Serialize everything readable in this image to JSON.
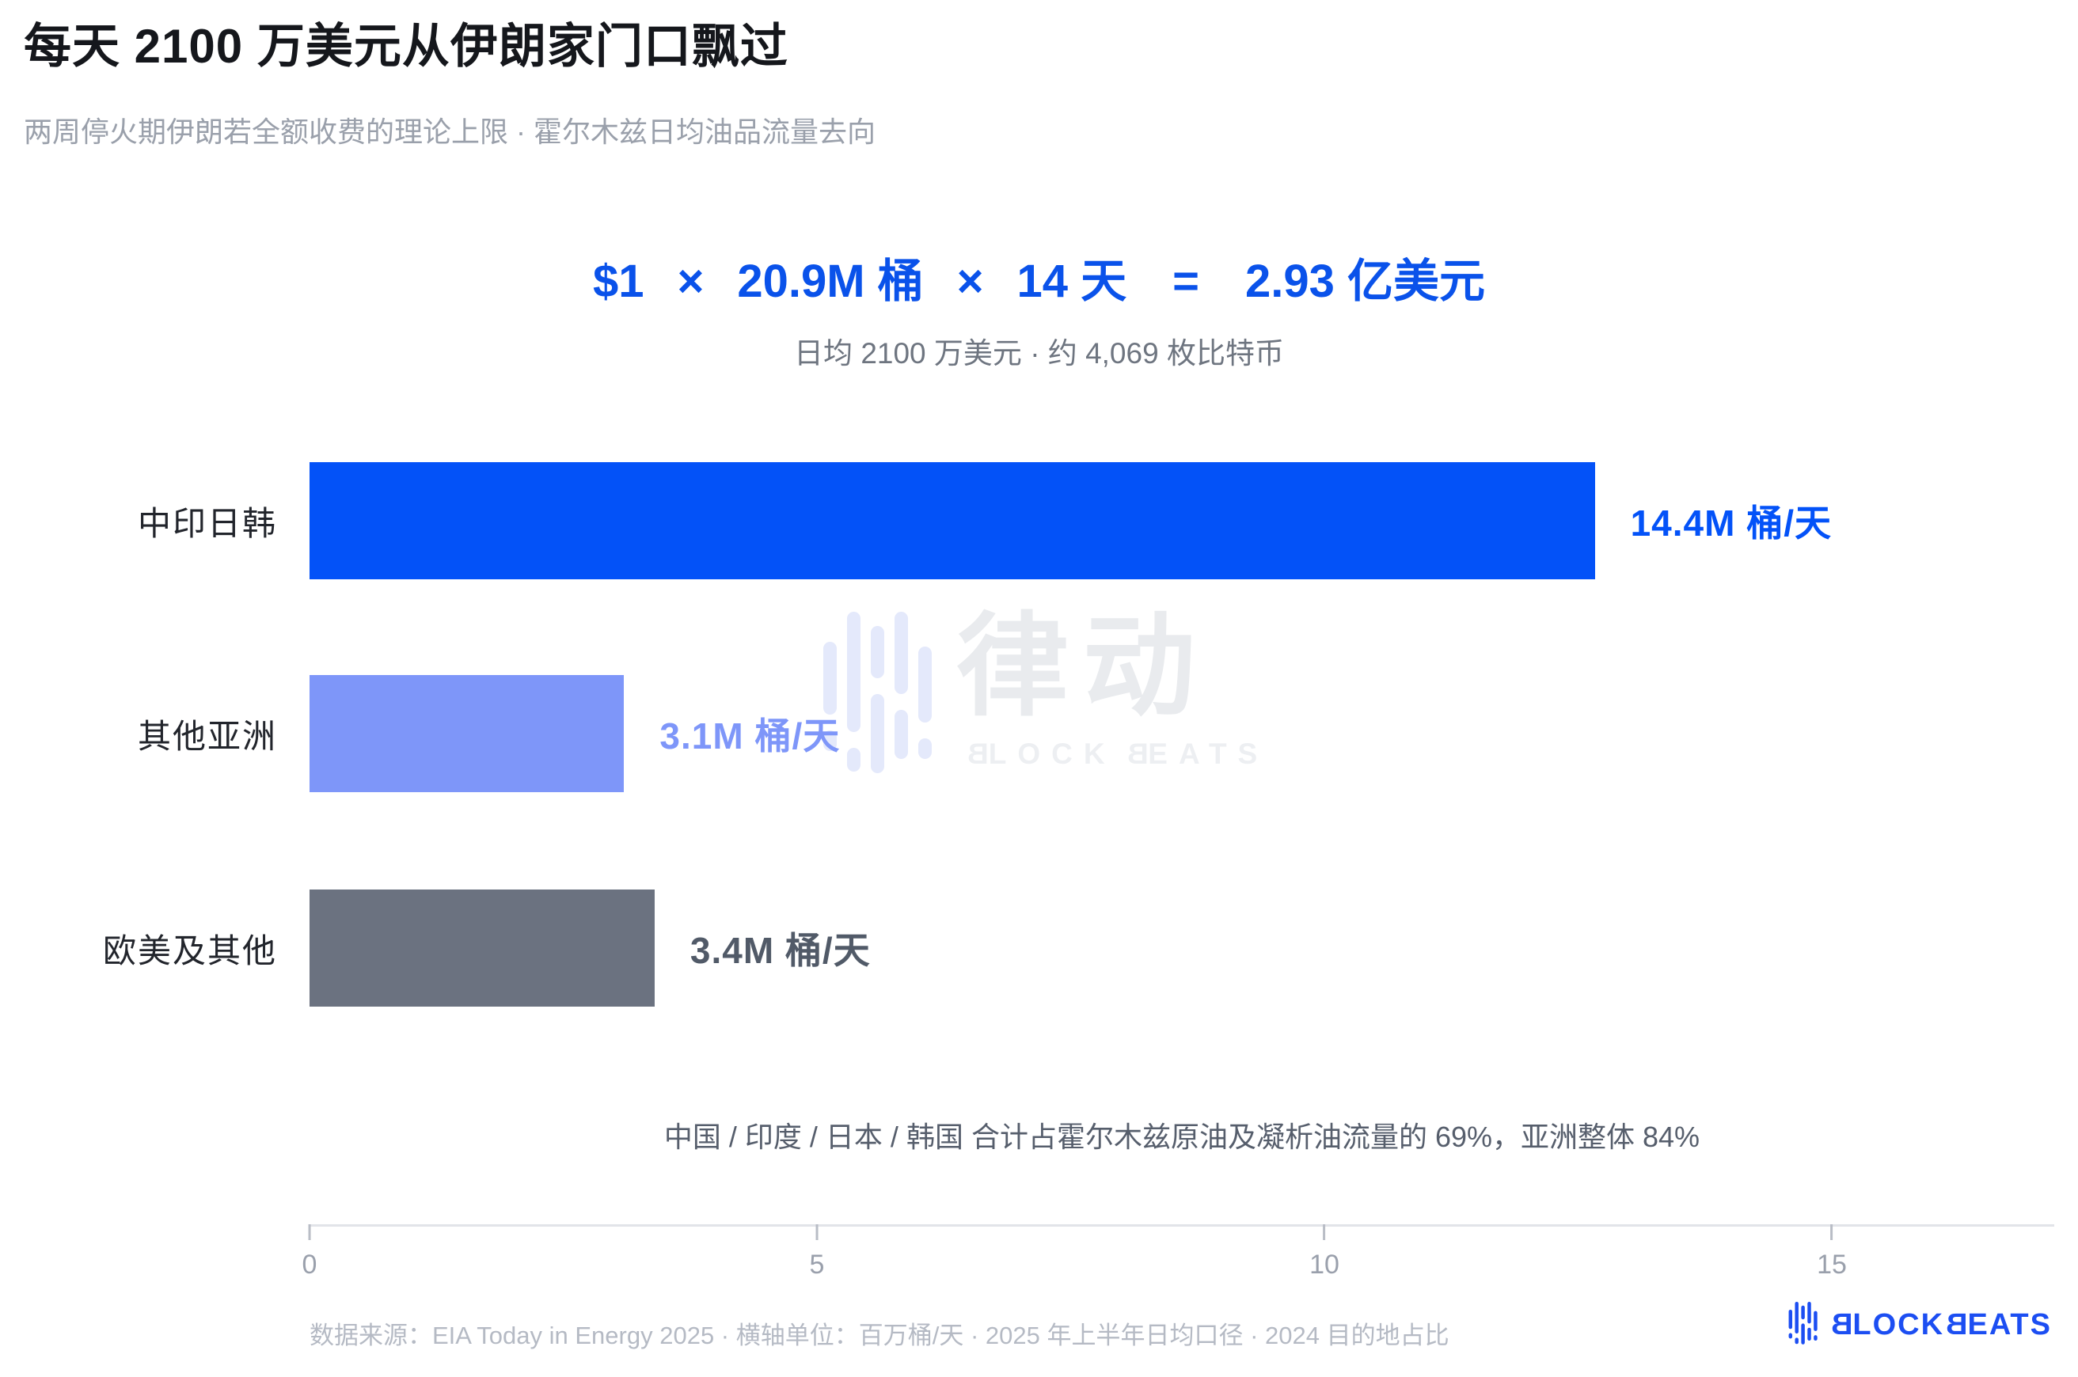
{
  "header": {
    "title": "每天 2100 万美元从伊朗家门口飘过",
    "subtitle": "两周停火期伊朗若全额收费的理论上限 · 霍尔木兹日均油品流量去向"
  },
  "formula": {
    "parts": [
      "$1",
      "×",
      "20.9M 桶",
      "×",
      "14 天",
      "=",
      "2.93 亿美元"
    ],
    "subtext": "日均 2100 万美元 · 约 4,069 枚比特币"
  },
  "chart_data": {
    "type": "bar",
    "orientation": "horizontal",
    "categories": [
      "中印日韩",
      "其他亚洲",
      "欧美及其他"
    ],
    "values": [
      14.4,
      3.1,
      3.4
    ],
    "value_labels": [
      "14.4M 桶/天",
      "3.1M 桶/天",
      "3.4M 桶/天"
    ],
    "bar_colors": [
      "#0352f8",
      "#7e96f9",
      "#6b7280"
    ],
    "value_colors": [
      "#0352f8",
      "#7e96f9",
      "#515a68"
    ],
    "xlim": [
      0,
      15
    ],
    "x_ticks": [
      0,
      5,
      10,
      15
    ],
    "xlabel": "百万桶/天",
    "grid": false,
    "legend": false,
    "note": "中国 / 印度 / 日本 / 韩国 合计占霍尔木兹原油及凝析油流量的 69%，亚洲整体 84%"
  },
  "watermark": {
    "brand_cn": "律动",
    "brand_en": "BLOCKBEATS"
  },
  "footer": {
    "source": "数据来源：EIA Today in Energy 2025 · 横轴单位：百万桶/天 · 2025 年上半年日均口径 · 2024 目的地占比",
    "brand": "BLOCKBEATS"
  },
  "colors": {
    "accent_blue": "#0352f8",
    "light_blue": "#7e96f9",
    "slate_gray": "#6b7280"
  }
}
